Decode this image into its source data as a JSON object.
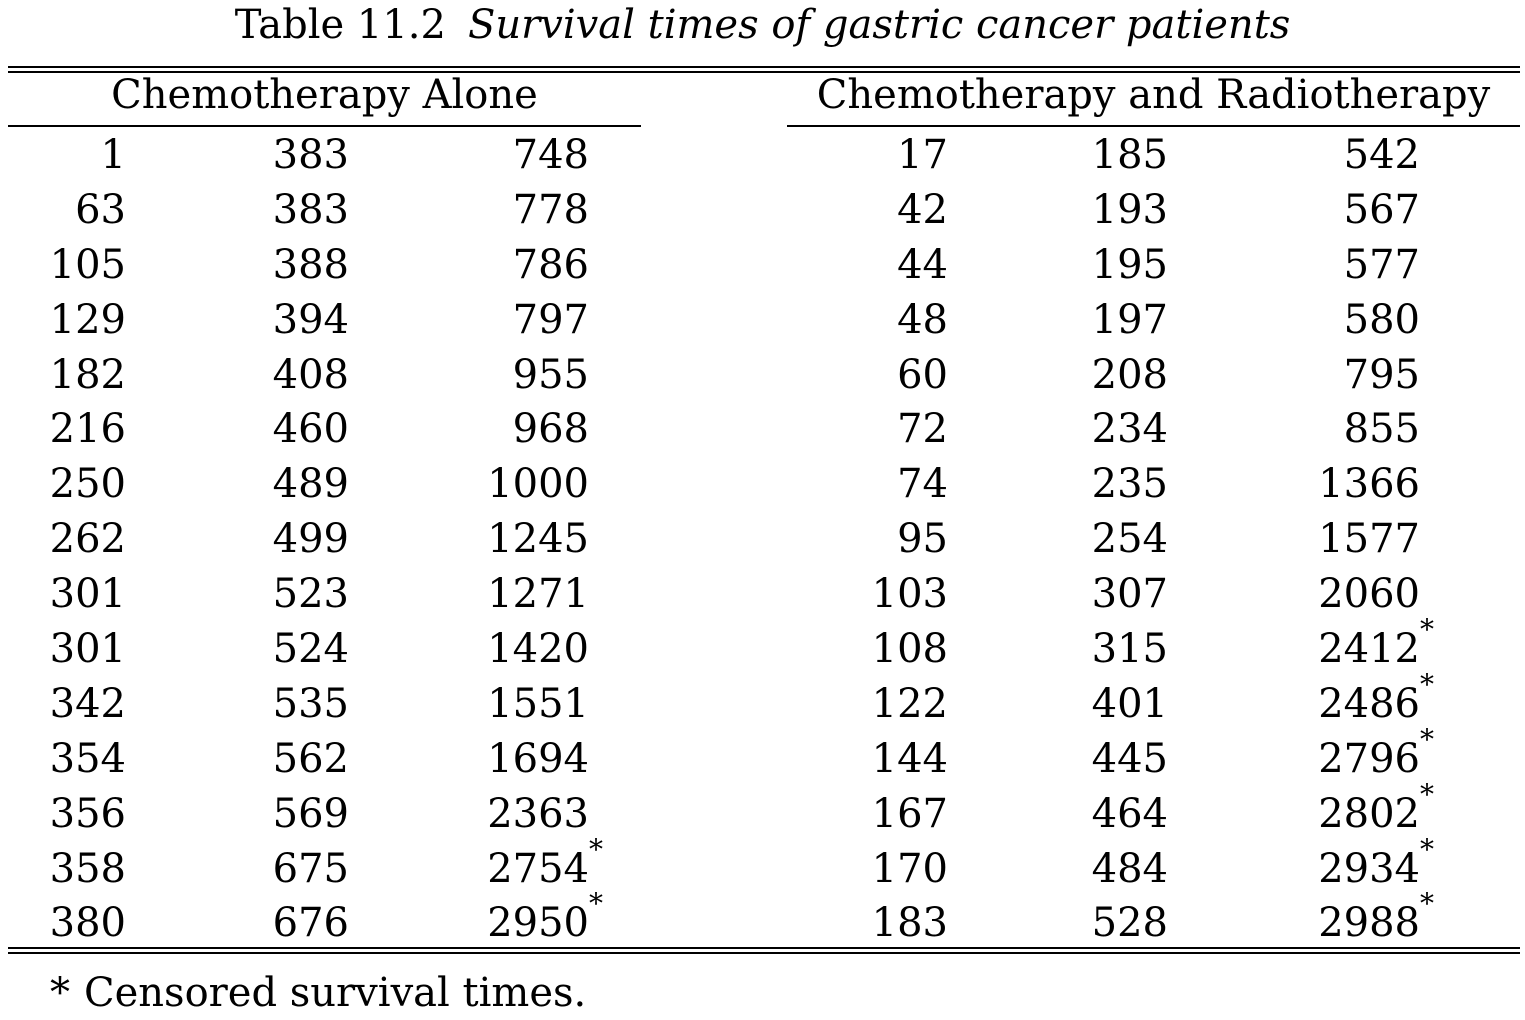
{
  "caption": {
    "label": "Table 11.2",
    "title": "Survival times of gastric cancer patients"
  },
  "groups": [
    {
      "header": "Chemotherapy Alone",
      "columns": [
        [
          "1",
          "63",
          "105",
          "129",
          "182",
          "216",
          "250",
          "262",
          "301",
          "301",
          "342",
          "354",
          "356",
          "358",
          "380"
        ],
        [
          "383",
          "383",
          "388",
          "394",
          "408",
          "460",
          "489",
          "499",
          "523",
          "524",
          "535",
          "562",
          "569",
          "675",
          "676"
        ],
        [
          "748",
          "778",
          "786",
          "797",
          "955",
          "968",
          "1000",
          "1245",
          "1271",
          "1420",
          "1551",
          "1694",
          "2363",
          "2754*",
          "2950*"
        ]
      ]
    },
    {
      "header": "Chemotherapy and Radiotherapy",
      "columns": [
        [
          "17",
          "42",
          "44",
          "48",
          "60",
          "72",
          "74",
          "95",
          "103",
          "108",
          "122",
          "144",
          "167",
          "170",
          "183"
        ],
        [
          "185",
          "193",
          "195",
          "197",
          "208",
          "234",
          "235",
          "254",
          "307",
          "315",
          "401",
          "445",
          "464",
          "484",
          "528"
        ],
        [
          "542",
          "567",
          "577",
          "580",
          "795",
          "855",
          "1366",
          "1577",
          "2060",
          "2412*",
          "2486*",
          "2796*",
          "2802*",
          "2934*",
          "2988*"
        ]
      ]
    }
  ],
  "footnote": {
    "mark": "*",
    "text": "Censored survival times."
  }
}
